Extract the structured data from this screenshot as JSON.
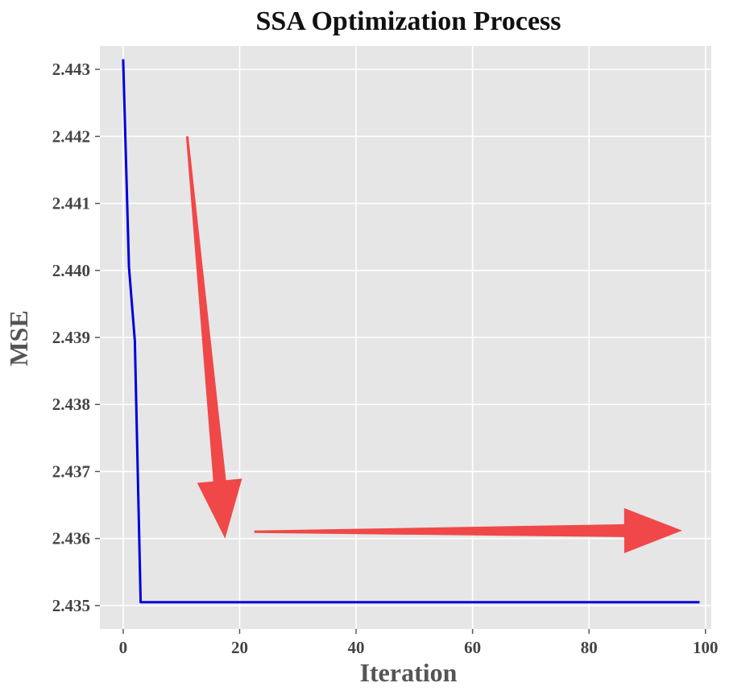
{
  "chart_data": {
    "type": "line",
    "title": "SSA Optimization Process",
    "xlabel": "Iteration",
    "ylabel": "MSE",
    "xlim": [
      -4,
      101
    ],
    "ylim": [
      2.43465,
      2.44335
    ],
    "xticks": [
      0,
      20,
      40,
      60,
      80,
      100
    ],
    "yticks": [
      2.435,
      2.436,
      2.437,
      2.438,
      2.439,
      2.44,
      2.441,
      2.442,
      2.443
    ],
    "ytick_labels": [
      "2.435",
      "2.436",
      "2.437",
      "2.438",
      "2.439",
      "2.440",
      "2.441",
      "2.442",
      "2.443"
    ],
    "grid": true,
    "series": [
      {
        "name": "MSE",
        "color": "#0000dd",
        "x": [
          0,
          1,
          2,
          3,
          4,
          10,
          20,
          30,
          40,
          50,
          60,
          70,
          80,
          90,
          99
        ],
        "y": [
          2.44315,
          2.44005,
          2.43895,
          2.43505,
          2.43505,
          2.43505,
          2.43505,
          2.43505,
          2.43505,
          2.43505,
          2.43505,
          2.43505,
          2.43505,
          2.43505,
          2.43505
        ]
      }
    ],
    "annotations": [
      {
        "type": "arrow",
        "color": "#f04848",
        "from": [
          11,
          2.442
        ],
        "to": [
          17.5,
          2.436
        ]
      },
      {
        "type": "arrow",
        "color": "#f04848",
        "from": [
          22.5,
          2.4361
        ],
        "to": [
          96,
          2.43612
        ]
      }
    ]
  },
  "colors": {
    "plot_background": "#e6e6e6",
    "grid": "#ffffff",
    "tick": "#555555"
  }
}
